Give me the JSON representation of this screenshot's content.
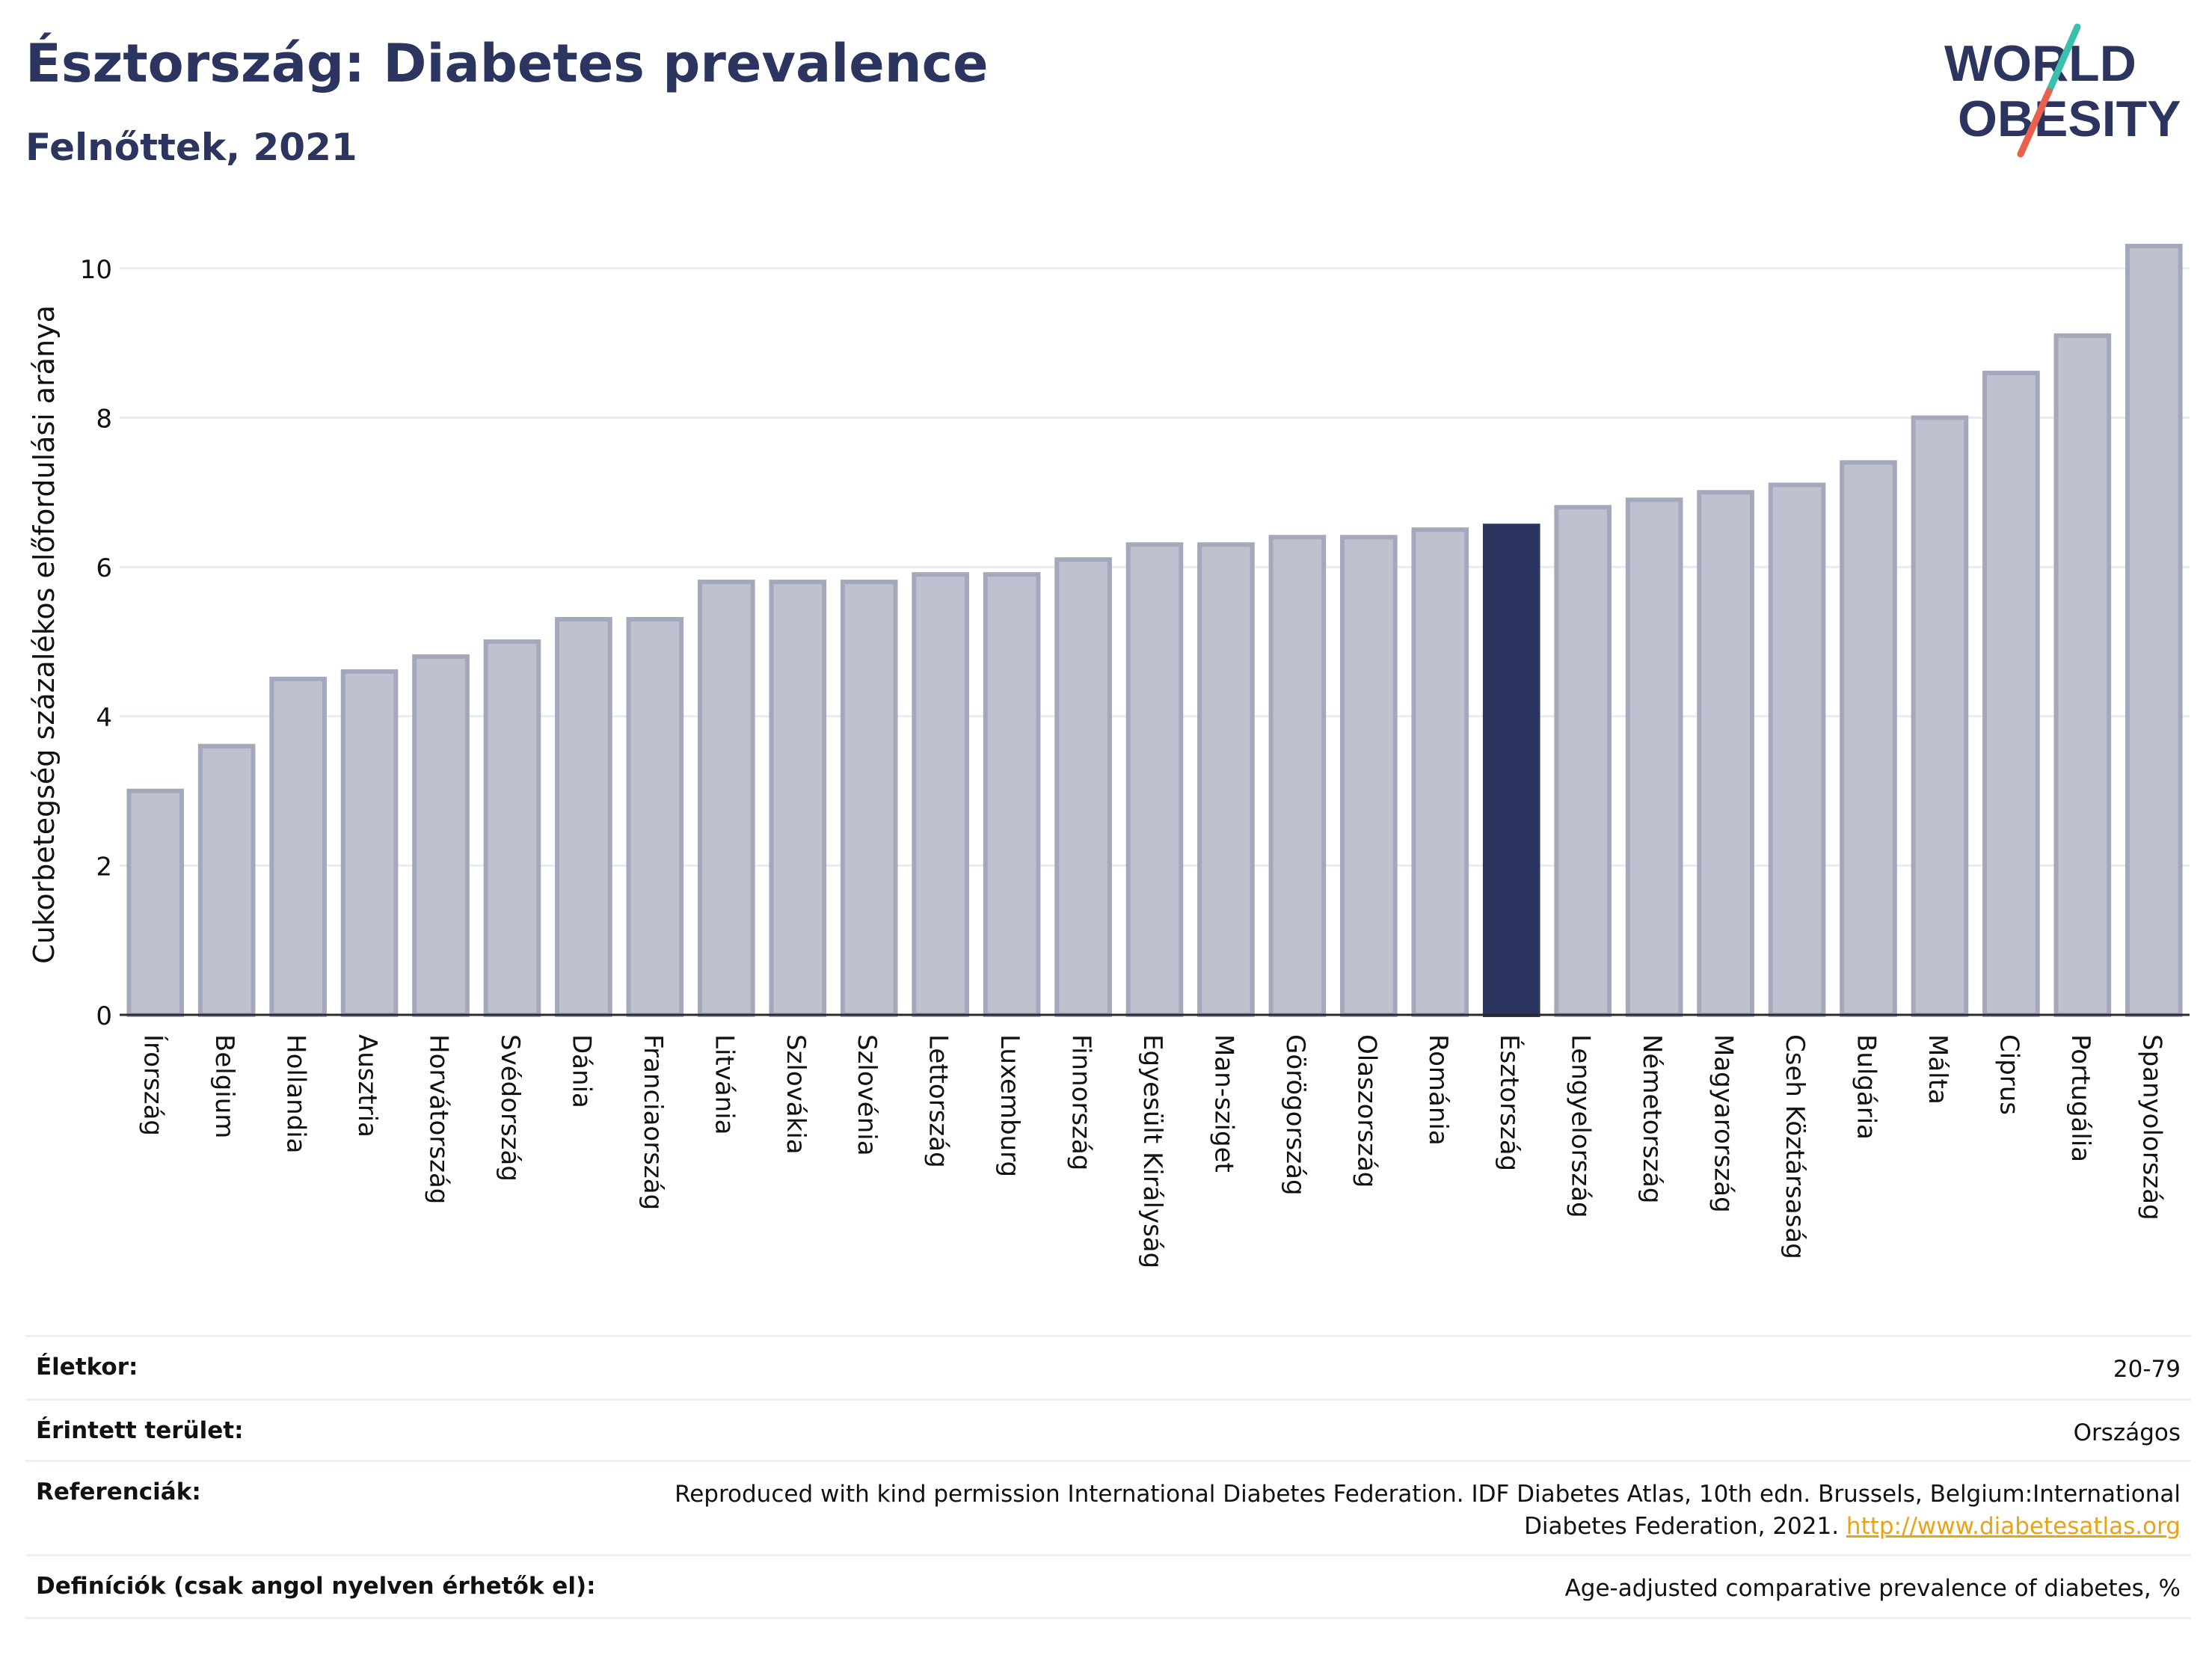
{
  "header": {
    "title": "Észtország: Diabetes prevalence",
    "subtitle": "Felnőttek, 2021"
  },
  "logo": {
    "line1": "WORLD",
    "line2": "OBESITY",
    "colors": {
      "text": "#2b3560",
      "slash_red": "#e8614d",
      "slash_teal": "#3bbfad"
    }
  },
  "colors": {
    "bar": "#bfc2ce",
    "bar_stroke": "#a3a8bd",
    "highlight": "#2b3560",
    "grid": "#e9ebef",
    "axis": "#2b2b2b"
  },
  "chart_data": {
    "type": "bar",
    "ylabel": "Cukorbetegség százalékos előfordulási aránya",
    "ylim": [
      0,
      10.5
    ],
    "yticks": [
      0,
      2,
      4,
      6,
      8,
      10
    ],
    "grid": true,
    "highlight": "Észtország",
    "categories": [
      "Írország",
      "Belgium",
      "Hollandia",
      "Ausztria",
      "Horvátország",
      "Svédország",
      "Dánia",
      "Franciaország",
      "Litvánia",
      "Szlovákia",
      "Szlovénia",
      "Lettország",
      "Luxemburg",
      "Finnország",
      "Egyesült Királyság",
      "Man-sziget",
      "Görögország",
      "Olaszország",
      "Románia",
      "Észtország",
      "Lengyelország",
      "Németország",
      "Magyarország",
      "Cseh Köztársaság",
      "Bulgária",
      "Málta",
      "Ciprus",
      "Portugália",
      "Spanyolország"
    ],
    "values": [
      3.0,
      3.6,
      4.5,
      4.6,
      4.8,
      5.0,
      5.3,
      5.3,
      5.8,
      5.8,
      5.8,
      5.9,
      5.9,
      6.1,
      6.3,
      6.3,
      6.4,
      6.4,
      6.5,
      6.55,
      6.8,
      6.9,
      7.0,
      7.1,
      7.4,
      8.0,
      8.6,
      9.1,
      10.3
    ]
  },
  "info": {
    "age_label": "Életkor:",
    "age_value": "20-79",
    "area_label": "Érintett terület:",
    "area_value": "Országos",
    "ref_label": "Referenciák:",
    "ref_text": "Reproduced with kind permission International Diabetes Federation.  IDF Diabetes Atlas, 10th edn. Brussels, Belgium:International Diabetes Federation, 2021. ",
    "ref_link": "http://www.diabetesatlas.org",
    "def_label": "Definíciók (csak angol nyelven érhetők el):",
    "def_value": "Age-adjusted comparative prevalence of diabetes, %"
  }
}
